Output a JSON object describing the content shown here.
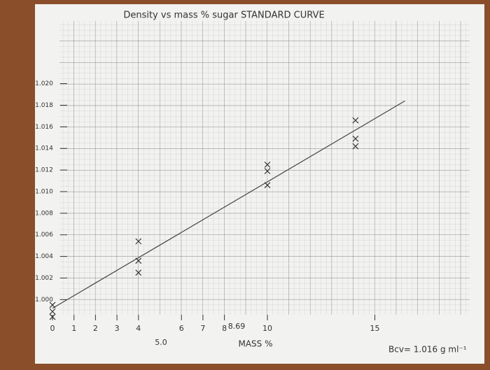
{
  "chart_data": {
    "type": "scatter",
    "title": "Density vs mass % sugar STANDARD CURVE",
    "x_label": "MASS %",
    "annotations": [
      "5.0",
      "8.69",
      "Bcv= 1.016 g ml⁻¹"
    ],
    "xlim": [
      0,
      19.4
    ],
    "ylim": [
      0.9986,
      1.0258
    ],
    "xticks": [
      0,
      1,
      2,
      3,
      4,
      6,
      7,
      8,
      10,
      15
    ],
    "yticks": [
      {
        "value": 1.0,
        "label": "1.000"
      },
      {
        "value": 1.002,
        "label": "1.002"
      },
      {
        "value": 1.004,
        "label": "1.004"
      },
      {
        "value": 1.006,
        "label": "1.006"
      },
      {
        "value": 1.008,
        "label": "1.008"
      },
      {
        "value": 1.01,
        "label": "1.010"
      },
      {
        "value": 1.012,
        "label": "1.012"
      },
      {
        "value": 1.014,
        "label": "1.014"
      },
      {
        "value": 1.016,
        "label": "1.016"
      },
      {
        "value": 1.018,
        "label": "1.018"
      },
      {
        "value": 1.02,
        "label": "1.020"
      }
    ],
    "series": [
      {
        "color": "#333333",
        "x": [
          0,
          0,
          0,
          4,
          4,
          4,
          10,
          10,
          10,
          14.1,
          14.1,
          14.1
        ],
        "values": [
          0.9995,
          0.9989,
          0.9984,
          1.0054,
          1.0036,
          1.0025,
          1.0125,
          1.0119,
          1.0106,
          1.0166,
          1.0149,
          1.0142
        ]
      }
    ],
    "trend_line": {
      "color": "#444444",
      "x": [
        0,
        16.4
      ],
      "values": [
        0.9992,
        1.0184
      ]
    }
  }
}
